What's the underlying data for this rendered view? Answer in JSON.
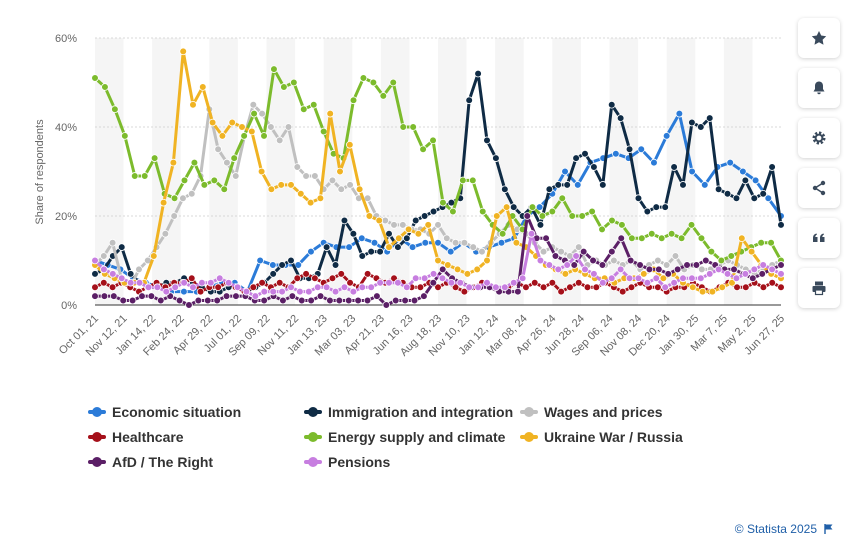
{
  "chart_data": {
    "type": "line",
    "ylabel": "Share of respondents",
    "ylim": [
      0,
      60
    ],
    "yticks": [
      "0%",
      "20%",
      "40%",
      "60%"
    ],
    "xticks": [
      "Oct 01, 21",
      "Nov 12, 21",
      "Jan 14, 22",
      "Feb 24, 22",
      "Apr 29, 22",
      "Jul 01, 22",
      "Sep 09, 22",
      "Nov 11, 22",
      "Jan 13, 23",
      "Mar 03, 23",
      "Apr 21, 23",
      "Jun 16, 23",
      "Aug 18, 23",
      "Nov 10, 23",
      "Jan 12, 24",
      "Mar 08, 24",
      "Apr 26, 24",
      "Jun 28, 24",
      "Sep 06, 24",
      "Nov 08, 24",
      "Dec 20, 24",
      "Jan 30, 25",
      "Mar 7, 25",
      "May 2, 25",
      "Jun 27, 25"
    ],
    "series": [
      {
        "name": "Economic situation",
        "color": "#2b7bd8",
        "values": [
          10,
          9,
          8,
          6,
          5,
          4,
          3,
          3,
          3,
          4,
          5,
          5,
          3,
          10,
          9,
          9,
          9,
          12,
          14,
          13,
          13,
          15,
          14,
          12,
          15,
          13,
          14,
          14,
          12,
          14,
          12,
          13,
          14,
          15,
          20,
          22,
          25,
          30,
          27,
          32,
          33,
          34,
          33,
          35,
          32,
          38,
          43,
          30,
          27,
          31,
          32,
          30,
          28,
          24,
          20
        ]
      },
      {
        "name": "Immigration and integration",
        "color": "#0f2b45",
        "values": [
          7,
          8,
          11,
          13,
          7,
          5,
          4,
          4,
          5,
          5,
          6,
          5,
          4,
          3,
          3,
          4,
          4,
          3,
          4,
          5,
          7,
          9,
          10,
          6,
          6,
          7,
          13,
          9,
          19,
          16,
          11,
          12,
          12,
          16,
          13,
          15,
          19,
          20,
          21,
          22,
          23,
          24,
          46,
          52,
          37,
          33,
          26,
          22,
          20,
          22,
          18,
          26,
          27,
          27,
          33,
          34,
          31,
          27,
          45,
          42,
          35,
          24,
          21,
          22,
          22,
          31,
          27,
          41,
          40,
          42,
          26,
          25,
          24,
          28,
          24,
          25,
          31,
          18
        ]
      },
      {
        "name": "Wages and prices",
        "color": "#c0c0c0",
        "values": [
          9,
          11,
          14,
          6,
          4,
          8,
          10,
          13,
          16,
          20,
          24,
          25,
          29,
          44,
          35,
          32,
          29,
          38,
          45,
          43,
          40,
          37,
          40,
          31,
          29,
          29,
          26,
          28,
          26,
          27,
          24,
          24,
          20,
          19,
          18,
          18,
          17,
          17,
          16,
          18,
          15,
          14,
          14,
          13,
          12,
          14,
          16,
          18,
          17,
          16,
          14,
          12,
          13,
          12,
          11,
          13,
          9,
          10,
          9,
          10,
          9,
          10,
          8,
          9,
          10,
          9,
          11,
          8,
          9,
          8,
          8,
          9,
          10,
          9,
          8,
          7,
          8,
          9,
          10
        ]
      },
      {
        "name": "Healthcare",
        "color": "#a5101a",
        "values": [
          4,
          5,
          4,
          5,
          4,
          3,
          4,
          5,
          4,
          5,
          5,
          6,
          3,
          4,
          4,
          5,
          4,
          3,
          4,
          5,
          4,
          5,
          4,
          6,
          7,
          6,
          5,
          6,
          7,
          5,
          4,
          7,
          6,
          5,
          6,
          5,
          4,
          4,
          5,
          4,
          5,
          4,
          3,
          4,
          5,
          4,
          3,
          4,
          5,
          4,
          5,
          4,
          5,
          3,
          4,
          5,
          4,
          4,
          5,
          4,
          3,
          4,
          5,
          4,
          4,
          3,
          4,
          4,
          5,
          4,
          3,
          4,
          5,
          4,
          4,
          5,
          4,
          5,
          4
        ]
      },
      {
        "name": "Energy supply and climate",
        "color": "#7cbb2c",
        "values": [
          51,
          49,
          44,
          38,
          29,
          29,
          33,
          25,
          24,
          28,
          32,
          27,
          28,
          26,
          33,
          38,
          43,
          38,
          53,
          49,
          50,
          44,
          45,
          39,
          34,
          33,
          46,
          51,
          50,
          47,
          50,
          40,
          40,
          35,
          37,
          23,
          21,
          28,
          28,
          21,
          18,
          16,
          20,
          17,
          22,
          20,
          21,
          24,
          20,
          20,
          21,
          17,
          19,
          18,
          15,
          15,
          16,
          15,
          16,
          15,
          18,
          15,
          12,
          10,
          11,
          12,
          13,
          14,
          14,
          10
        ]
      },
      {
        "name": "Ukraine War / Russia",
        "color": "#f0b323",
        "values": [
          9,
          7,
          6,
          5,
          5,
          5,
          11,
          23,
          32,
          57,
          45,
          49,
          41,
          38,
          41,
          40,
          39,
          30,
          26,
          27,
          27,
          25,
          23,
          24,
          43,
          30,
          36,
          26,
          20,
          19,
          13,
          15,
          17,
          16,
          18,
          10,
          9,
          8,
          7,
          8,
          10,
          20,
          22,
          14,
          13,
          11,
          9,
          8,
          7,
          8,
          7,
          6,
          6,
          5,
          6,
          6,
          7,
          8,
          6,
          7,
          5,
          4,
          3,
          3,
          4,
          5,
          15,
          12,
          9,
          7,
          6
        ]
      },
      {
        "name": "AfD / The Right",
        "color": "#5b1f66",
        "values": [
          2,
          2,
          2,
          1,
          1,
          2,
          2,
          1,
          2,
          1,
          0,
          1,
          1,
          1,
          2,
          2,
          2,
          1,
          1,
          2,
          1,
          2,
          1,
          1,
          2,
          1,
          1,
          1,
          1,
          1,
          2,
          0,
          1,
          1,
          1,
          2,
          5,
          8,
          6,
          5,
          4,
          4,
          4,
          3,
          3,
          3,
          20,
          15,
          15,
          11,
          10,
          9,
          12,
          10,
          9,
          12,
          15,
          10,
          9,
          8,
          8,
          7,
          8,
          9,
          9,
          10,
          9,
          8,
          8,
          7,
          6,
          7,
          8,
          9
        ]
      },
      {
        "name": "Pensions",
        "color": "#c77ee0",
        "values": [
          10,
          8,
          7,
          6,
          5,
          5,
          4,
          4,
          3,
          4,
          5,
          4,
          5,
          5,
          6,
          5,
          4,
          3,
          2,
          3,
          3,
          3,
          4,
          3,
          3,
          4,
          4,
          3,
          4,
          3,
          4,
          4,
          5,
          5,
          5,
          4,
          6,
          6,
          7,
          6,
          5,
          5,
          4,
          4,
          5,
          4,
          4,
          5,
          6,
          16,
          10,
          9,
          8,
          9,
          11,
          8,
          7,
          5,
          6,
          8,
          6,
          6,
          5,
          6,
          4,
          5,
          6,
          6,
          6,
          7,
          8,
          7,
          6,
          7,
          8,
          9,
          8,
          7
        ]
      }
    ]
  },
  "sidebar": {
    "star_label": "★",
    "bell_label": "notifications",
    "gear_label": "settings",
    "share_label": "share",
    "quote_label": "❝",
    "print_label": "print"
  },
  "credit": {
    "text": "© Statista 2025"
  }
}
